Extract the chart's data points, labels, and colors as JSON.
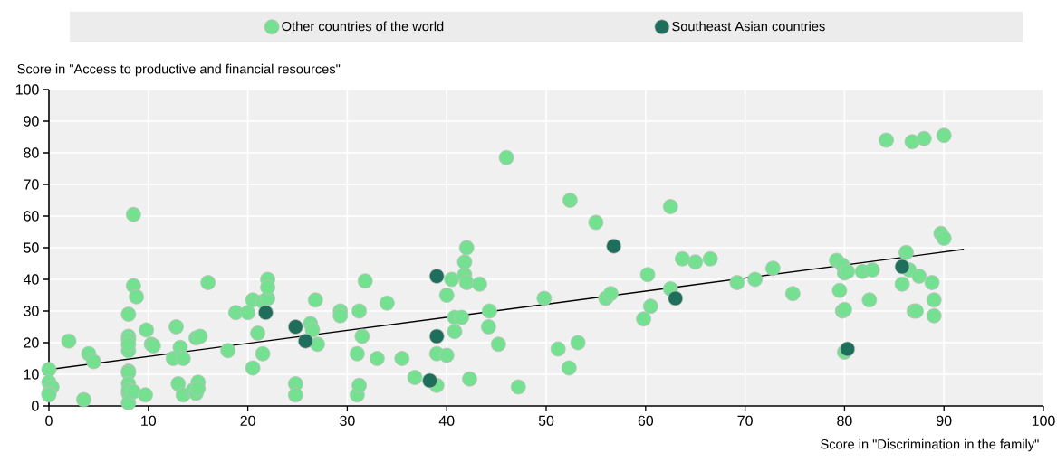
{
  "chart_data": {
    "type": "scatter",
    "xlabel": "Score in \"Discrimination in the family\"",
    "ylabel": "Score in \"Access to productive and financial resources\"",
    "xlim": [
      0,
      100
    ],
    "ylim": [
      0,
      100
    ],
    "xticks": [
      0,
      10,
      20,
      30,
      40,
      50,
      60,
      70,
      80,
      90,
      100
    ],
    "yticks": [
      0,
      10,
      20,
      30,
      40,
      50,
      60,
      70,
      80,
      90,
      100
    ],
    "grid": true,
    "legend": "top",
    "marker": "circle",
    "series": [
      {
        "name": "Other countries of the world",
        "color": "#74e191",
        "x": [
          0,
          0,
          0.3,
          0,
          0,
          2,
          3.5,
          4,
          4.5,
          8.5,
          8.5,
          8.8,
          8,
          8,
          8,
          8,
          8,
          8,
          8,
          8,
          8,
          8,
          8,
          8.5,
          9.7,
          9.8,
          10.3,
          10.5,
          12.5,
          12.8,
          13,
          13.2,
          13.5,
          13.5,
          14.5,
          14.8,
          15,
          15,
          14.8,
          15.2,
          16,
          18,
          18.8,
          20,
          20.5,
          20.5,
          21,
          21.5,
          21.5,
          22,
          22,
          22,
          24.8,
          24.8,
          26.3,
          26.5,
          26.8,
          27,
          29.3,
          29.3,
          31,
          31,
          31.2,
          31.2,
          31.5,
          31.8,
          33,
          34,
          35.5,
          36.8,
          39,
          39,
          40,
          40,
          40.5,
          40.8,
          40.8,
          41.8,
          41.8,
          42,
          41.5,
          42,
          42.3,
          43.3,
          44.3,
          44.2,
          45.2,
          46,
          47.2,
          49.8,
          51.2,
          52.3,
          52.4,
          53.2,
          55,
          56,
          56.5,
          59.8,
          60.2,
          60.5,
          62.5,
          62.5,
          63.7,
          65,
          66.5,
          69.2,
          71,
          72.8,
          74.8,
          79.2,
          79.5,
          79.8,
          79.8,
          80,
          80,
          80.3,
          80,
          81.8,
          82.5,
          82.8,
          84.2,
          85.8,
          86.2,
          86.5,
          86.8,
          87,
          87.2,
          87.5,
          88,
          88.8,
          89,
          89,
          89.7,
          90,
          90
        ],
        "values": [
          11.5,
          7.5,
          6,
          4,
          3.5,
          20.5,
          2,
          16.5,
          14,
          60.5,
          38,
          34.5,
          29,
          22,
          21,
          17.5,
          19.5,
          11,
          10.5,
          7,
          4,
          5,
          1,
          4.5,
          3.5,
          24,
          19.5,
          19,
          15,
          25,
          7,
          18.5,
          15,
          3.5,
          5,
          4,
          7.5,
          5.5,
          21.5,
          22,
          39,
          17.5,
          29.5,
          29.5,
          12,
          33.5,
          23,
          16.5,
          33,
          34,
          40,
          37.5,
          7,
          3.5,
          26,
          24,
          33.5,
          19.5,
          30,
          28.5,
          16.5,
          3.5,
          6.5,
          30,
          22,
          39.5,
          15,
          32.5,
          15,
          9,
          16.5,
          6.5,
          16,
          35,
          40,
          28,
          23.5,
          41.5,
          45.5,
          50,
          28,
          39,
          8.5,
          38.5,
          30,
          25,
          19.5,
          78.5,
          6,
          34,
          18,
          12,
          65,
          20,
          58,
          34,
          35.5,
          27.5,
          41.5,
          31.5,
          37,
          63,
          46.5,
          45.5,
          46.5,
          39,
          40,
          43.5,
          35.5,
          46,
          36.5,
          44.5,
          30,
          42,
          30.5,
          42.5,
          17,
          42.5,
          33.5,
          43,
          84,
          38.5,
          48.5,
          43,
          83.5,
          30,
          30,
          41,
          84.5,
          39,
          28.5,
          33.5,
          54.5,
          53,
          85.5
        ]
      },
      {
        "name": "Southeast Asian countries",
        "color": "#1d6e5a",
        "x": [
          21.8,
          24.8,
          25.8,
          38.3,
          39,
          39,
          56.8,
          63,
          80.3,
          85.8
        ],
        "values": [
          29.5,
          25,
          20.5,
          8,
          41,
          22,
          50.5,
          34,
          18,
          44
        ]
      },
      {
        "type": "line",
        "color": "#000000",
        "marker": "none",
        "x": [
          0,
          92
        ],
        "values": [
          11.5,
          49.5
        ]
      }
    ]
  }
}
